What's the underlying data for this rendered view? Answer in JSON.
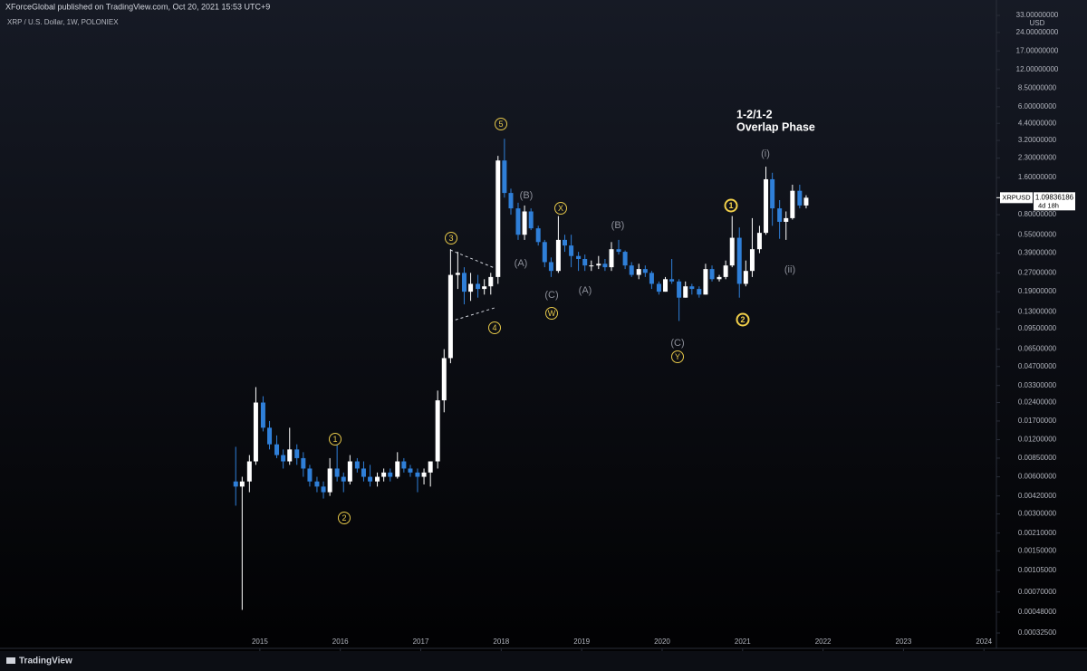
{
  "header": {
    "publisher": "XForceGlobal published on TradingView.com, Oct 20, 2021 15:53 UTC+9",
    "brand": "TradingView"
  },
  "chart_data": {
    "type": "candlestick",
    "title": "XRP / U.S. Dollar, 1W, POLONIEX",
    "y_unit": "USD",
    "symbol_label": "XRPUSD",
    "last_price": 1.09836186,
    "countdown": "4d 18h",
    "log_scale": true,
    "grid": false,
    "up_color": "#ffffff",
    "down_color": "#2f7fd8",
    "xlim": [
      2011.77,
      2024.155
    ],
    "xticks": [
      2015,
      2016,
      2017,
      2018,
      2019,
      2020,
      2021,
      2022,
      2023,
      2024
    ],
    "ylim": [
      0.000244,
      44
    ],
    "yticks": [
      {
        "value": 33,
        "label": "33.00000000"
      },
      {
        "value": 24,
        "label": "24.00000000"
      },
      {
        "value": 17,
        "label": "17.00000000"
      },
      {
        "value": 12,
        "label": "12.00000000"
      },
      {
        "value": 8.5,
        "label": "8.50000000"
      },
      {
        "value": 6,
        "label": "6.00000000"
      },
      {
        "value": 4.4,
        "label": "4.40000000"
      },
      {
        "value": 3.2,
        "label": "3.20000000"
      },
      {
        "value": 2.3,
        "label": "2.30000000"
      },
      {
        "value": 1.6,
        "label": "1.60000000"
      },
      {
        "value": 0.8,
        "label": "0.80000000"
      },
      {
        "value": 0.55,
        "label": "0.55000000"
      },
      {
        "value": 0.39,
        "label": "0.39000000"
      },
      {
        "value": 0.27,
        "label": "0.27000000"
      },
      {
        "value": 0.19,
        "label": "0.19000000"
      },
      {
        "value": 0.13,
        "label": "0.13000000"
      },
      {
        "value": 0.095,
        "label": "0.09500000"
      },
      {
        "value": 0.065,
        "label": "0.06500000"
      },
      {
        "value": 0.047,
        "label": "0.04700000"
      },
      {
        "value": 0.033,
        "label": "0.03300000"
      },
      {
        "value": 0.024,
        "label": "0.02400000"
      },
      {
        "value": 0.017,
        "label": "0.01700000"
      },
      {
        "value": 0.012,
        "label": "0.01200000"
      },
      {
        "value": 0.0085,
        "label": "0.00850000"
      },
      {
        "value": 0.006,
        "label": "0.00600000"
      },
      {
        "value": 0.0042,
        "label": "0.00420000"
      },
      {
        "value": 0.003,
        "label": "0.00300000"
      },
      {
        "value": 0.0021,
        "label": "0.00210000"
      },
      {
        "value": 0.0015,
        "label": "0.00150000"
      },
      {
        "value": 0.00105,
        "label": "0.00105000"
      },
      {
        "value": 0.0007,
        "label": "0.00070000"
      },
      {
        "value": 0.00048,
        "label": "0.00048000"
      },
      {
        "value": 0.000325,
        "label": "0.00032500"
      }
    ],
    "x": [
      2014.7,
      2014.78,
      2014.87,
      2014.95,
      2015.04,
      2015.12,
      2015.21,
      2015.29,
      2015.37,
      2015.46,
      2015.54,
      2015.62,
      2015.71,
      2015.79,
      2015.87,
      2015.96,
      2016.04,
      2016.12,
      2016.21,
      2016.29,
      2016.37,
      2016.46,
      2016.54,
      2016.62,
      2016.71,
      2016.79,
      2016.87,
      2016.96,
      2017.04,
      2017.12,
      2017.21,
      2017.29,
      2017.37,
      2017.46,
      2017.54,
      2017.62,
      2017.71,
      2017.79,
      2017.87,
      2017.96,
      2018.04,
      2018.12,
      2018.21,
      2018.29,
      2018.37,
      2018.46,
      2018.54,
      2018.62,
      2018.71,
      2018.79,
      2018.87,
      2018.96,
      2019.04,
      2019.12,
      2019.21,
      2019.29,
      2019.37,
      2019.46,
      2019.54,
      2019.62,
      2019.71,
      2019.79,
      2019.87,
      2019.96,
      2020.04,
      2020.12,
      2020.21,
      2020.29,
      2020.37,
      2020.46,
      2020.54,
      2020.62,
      2020.71,
      2020.79,
      2020.87,
      2020.96,
      2021.04,
      2021.12,
      2021.21,
      2021.29,
      2021.37,
      2021.46,
      2021.54,
      2021.62,
      2021.71,
      2021.79
    ],
    "open": [
      0.0055,
      0.005,
      0.0055,
      0.008,
      0.024,
      0.015,
      0.011,
      0.009,
      0.008,
      0.01,
      0.0085,
      0.007,
      0.0055,
      0.005,
      0.0045,
      0.007,
      0.006,
      0.0055,
      0.008,
      0.007,
      0.006,
      0.0055,
      0.006,
      0.0065,
      0.006,
      0.008,
      0.007,
      0.0065,
      0.006,
      0.0065,
      0.008,
      0.025,
      0.055,
      0.26,
      0.27,
      0.19,
      0.22,
      0.2,
      0.21,
      0.25,
      2.2,
      1.2,
      0.9,
      0.55,
      0.85,
      0.62,
      0.48,
      0.33,
      0.28,
      0.5,
      0.45,
      0.37,
      0.35,
      0.31,
      0.31,
      0.32,
      0.3,
      0.42,
      0.4,
      0.31,
      0.26,
      0.29,
      0.27,
      0.22,
      0.19,
      0.24,
      0.23,
      0.17,
      0.21,
      0.2,
      0.18,
      0.29,
      0.24,
      0.25,
      0.31,
      0.52,
      0.22,
      0.28,
      0.42,
      0.57,
      1.55,
      0.9,
      0.7,
      0.75,
      1.25,
      0.95
    ],
    "high": [
      0.0105,
      0.006,
      0.009,
      0.032,
      0.027,
      0.017,
      0.013,
      0.01,
      0.015,
      0.011,
      0.0095,
      0.0075,
      0.006,
      0.0055,
      0.0085,
      0.011,
      0.0065,
      0.009,
      0.0085,
      0.008,
      0.0075,
      0.0065,
      0.007,
      0.007,
      0.0095,
      0.0085,
      0.0075,
      0.007,
      0.007,
      0.008,
      0.03,
      0.065,
      0.42,
      0.4,
      0.3,
      0.27,
      0.26,
      0.24,
      0.27,
      2.4,
      3.3,
      1.3,
      1.0,
      0.95,
      0.9,
      0.65,
      0.5,
      0.36,
      0.78,
      0.55,
      0.55,
      0.4,
      0.38,
      0.34,
      0.37,
      0.35,
      0.48,
      0.5,
      0.41,
      0.33,
      0.32,
      0.31,
      0.28,
      0.23,
      0.25,
      0.35,
      0.24,
      0.23,
      0.22,
      0.21,
      0.32,
      0.31,
      0.26,
      0.34,
      0.78,
      0.63,
      0.34,
      0.75,
      0.65,
      1.96,
      1.75,
      1.05,
      0.85,
      1.4,
      1.4,
      1.15
    ],
    "low": [
      0.0035,
      0.0005,
      0.0045,
      0.0075,
      0.014,
      0.01,
      0.0085,
      0.007,
      0.0075,
      0.0075,
      0.006,
      0.005,
      0.0045,
      0.004,
      0.0042,
      0.0055,
      0.0045,
      0.0052,
      0.0065,
      0.0055,
      0.005,
      0.005,
      0.0055,
      0.0055,
      0.0058,
      0.0065,
      0.006,
      0.0045,
      0.0052,
      0.005,
      0.007,
      0.02,
      0.05,
      0.2,
      0.15,
      0.16,
      0.17,
      0.18,
      0.18,
      0.22,
      1.1,
      0.8,
      0.5,
      0.5,
      0.6,
      0.45,
      0.3,
      0.25,
      0.27,
      0.4,
      0.3,
      0.28,
      0.28,
      0.28,
      0.29,
      0.28,
      0.28,
      0.38,
      0.29,
      0.25,
      0.24,
      0.25,
      0.2,
      0.18,
      0.19,
      0.22,
      0.11,
      0.17,
      0.18,
      0.17,
      0.18,
      0.23,
      0.23,
      0.24,
      0.3,
      0.17,
      0.21,
      0.25,
      0.39,
      0.55,
      0.65,
      0.51,
      0.5,
      0.73,
      0.9,
      0.9
    ],
    "close": [
      0.005,
      0.0055,
      0.008,
      0.024,
      0.015,
      0.011,
      0.009,
      0.008,
      0.01,
      0.0085,
      0.007,
      0.0055,
      0.005,
      0.0045,
      0.007,
      0.006,
      0.0055,
      0.008,
      0.007,
      0.006,
      0.0055,
      0.006,
      0.0065,
      0.006,
      0.008,
      0.007,
      0.0065,
      0.006,
      0.0065,
      0.008,
      0.025,
      0.055,
      0.26,
      0.27,
      0.19,
      0.22,
      0.2,
      0.21,
      0.25,
      2.2,
      1.2,
      0.9,
      0.55,
      0.85,
      0.62,
      0.48,
      0.33,
      0.28,
      0.5,
      0.45,
      0.37,
      0.35,
      0.31,
      0.31,
      0.32,
      0.3,
      0.42,
      0.4,
      0.31,
      0.26,
      0.29,
      0.27,
      0.22,
      0.19,
      0.24,
      0.23,
      0.17,
      0.21,
      0.2,
      0.18,
      0.29,
      0.24,
      0.25,
      0.31,
      0.52,
      0.22,
      0.28,
      0.42,
      0.57,
      1.55,
      0.9,
      0.7,
      0.75,
      1.25,
      0.95,
      1.098
    ],
    "annotation_colors": {
      "circle": "#e6c84a",
      "bold": "#f2d04a",
      "wave": "#8d909a",
      "note": "#ffffff"
    },
    "annotations": [
      {
        "text": "1",
        "style": "circle"
      },
      {
        "text": "2",
        "style": "circle"
      },
      {
        "text": "3",
        "style": "circle"
      },
      {
        "text": "4",
        "style": "circle"
      },
      {
        "text": "5",
        "style": "circle"
      },
      {
        "text": "X",
        "style": "circle"
      },
      {
        "text": "W",
        "style": "circle"
      },
      {
        "text": "Y",
        "style": "circle"
      },
      {
        "text": "1",
        "style": "bold"
      },
      {
        "text": "2",
        "style": "bold"
      },
      {
        "text": "(B)",
        "style": "wave"
      },
      {
        "text": "(A)",
        "style": "wave"
      },
      {
        "text": "(C)",
        "style": "wave"
      },
      {
        "text": "(A)",
        "style": "wave"
      },
      {
        "text": "(B)",
        "style": "wave"
      },
      {
        "text": "(C)",
        "style": "wave"
      },
      {
        "text": "(i)",
        "style": "wave"
      },
      {
        "text": "(ii)",
        "style": "wave"
      },
      {
        "text": "1-2/1-2",
        "style": "note"
      },
      {
        "text": "Overlap Phase",
        "style": "note"
      }
    ]
  }
}
